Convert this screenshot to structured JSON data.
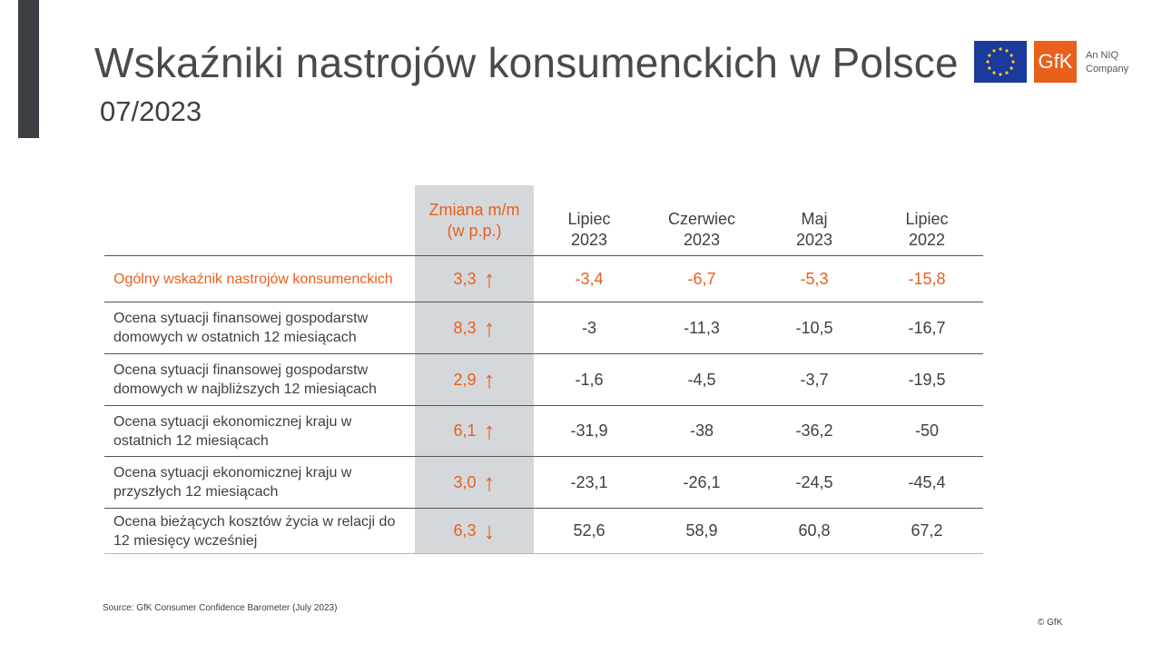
{
  "title": "Wskaźniki nastrojów konsumenckich w Polsce",
  "subtitle": "07/2023",
  "logo": {
    "brand": "GfK",
    "tagline_1": "An NIQ",
    "tagline_2": "Company"
  },
  "accent_color": "#E8601C",
  "table": {
    "change_header": "Zmiana m/m (w p.p.)",
    "columns": [
      {
        "l1": "Lipiec",
        "l2": "2023"
      },
      {
        "l1": "Czerwiec",
        "l2": "2023"
      },
      {
        "l1": "Maj",
        "l2": "2023"
      },
      {
        "l1": "Lipiec",
        "l2": "2022"
      }
    ],
    "rows": [
      {
        "label": "Ogólny wskaźnik nastrojów konsumenckich",
        "change": "3,3",
        "arrow": "↑",
        "values": [
          "-3,4",
          "-6,7",
          "-5,3",
          "-15,8"
        ]
      },
      {
        "label": "Ocena sytuacji finansowej gospodarstw domowych w ostatnich 12 miesiącach",
        "change": "8,3",
        "arrow": "↑",
        "values": [
          "-3",
          "-11,3",
          "-10,5",
          "-16,7"
        ]
      },
      {
        "label": "Ocena sytuacji finansowej gospodarstw domowych w najbliższych 12 miesiącach",
        "change": "2,9",
        "arrow": "↑",
        "values": [
          "-1,6",
          "-4,5",
          "-3,7",
          "-19,5"
        ]
      },
      {
        "label": "Ocena sytuacji ekonomicznej kraju w ostatnich 12 miesiącach",
        "change": "6,1",
        "arrow": "↑",
        "values": [
          "-31,9",
          "-38",
          "-36,2",
          "-50"
        ]
      },
      {
        "label": "Ocena sytuacji ekonomicznej kraju w przyszłych 12 miesiącach",
        "change": "3,0",
        "arrow": "↑",
        "values": [
          "-23,1",
          "-26,1",
          "-24,5",
          "-45,4"
        ]
      },
      {
        "label": "Ocena bieżących kosztów życia w relacji do 12 miesięcy wcześniej",
        "change": "6,3",
        "arrow": "↓",
        "values": [
          "52,6",
          "58,9",
          "60,8",
          "67,2"
        ]
      }
    ]
  },
  "source": "Source: GfK Consumer Confidence Barometer (July 2023)",
  "copyright": "© GfK"
}
